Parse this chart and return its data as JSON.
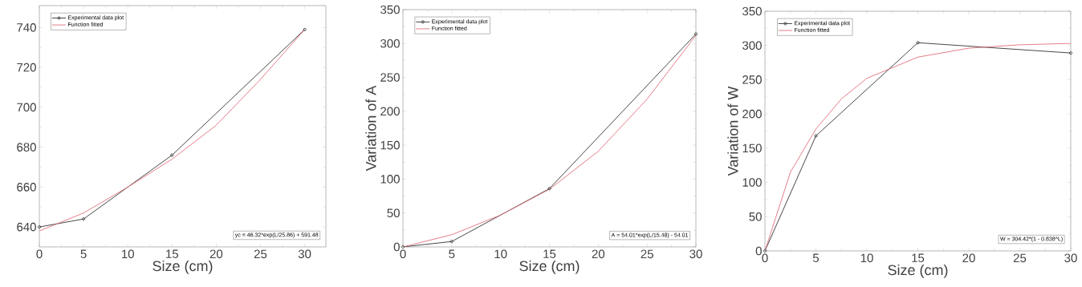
{
  "chart_data": [
    {
      "type": "line",
      "xlabel": "Size (cm)",
      "xlim": [
        0,
        32.4
      ],
      "ylim": [
        630,
        751
      ],
      "xticks": [
        0,
        5,
        10,
        15,
        20,
        25,
        30
      ],
      "yticks": [
        640,
        660,
        680,
        700,
        720,
        740
      ],
      "legend": "top left",
      "annotations": [
        "yc = 46.32*exp(L/25.86) + 591.48"
      ],
      "series": [
        {
          "name": "Experimental data plot",
          "color": "#333333",
          "marker": "circle",
          "x": [
            0,
            5,
            15,
            30
          ],
          "values": [
            640,
            644,
            676,
            739
          ]
        },
        {
          "name": "Function fitted",
          "color": "#e0707a",
          "marker": "none",
          "x": [
            0,
            5,
            10,
            15,
            20,
            25,
            30
          ],
          "values": [
            638,
            647,
            660,
            674,
            691,
            714,
            739
          ]
        }
      ]
    },
    {
      "type": "line",
      "xlabel": "Size (cm)",
      "ylabel": "Variation of A",
      "xlim": [
        0,
        30
      ],
      "ylim": [
        0,
        350
      ],
      "xticks": [
        0,
        5,
        10,
        15,
        20,
        25,
        30
      ],
      "yticks": [
        0,
        50,
        100,
        150,
        200,
        250,
        300,
        350
      ],
      "legend": "top left",
      "annotations": [
        "A = 54.01*exp(L/15.48) - 54.01"
      ],
      "series": [
        {
          "name": "Experimental data plot",
          "color": "#333333",
          "marker": "circle",
          "x": [
            0,
            5,
            15,
            30
          ],
          "values": [
            0,
            8,
            86,
            314
          ]
        },
        {
          "name": "Function fitted",
          "color": "#e0707a",
          "marker": "none",
          "x": [
            0,
            5,
            10,
            15,
            20,
            25,
            30
          ],
          "values": [
            0,
            18,
            47,
            85,
            141,
            218,
            312
          ]
        }
      ]
    },
    {
      "type": "line",
      "xlabel": "Size (cm)",
      "ylabel": "Variation of W",
      "xlim": [
        0,
        30
      ],
      "ylim": [
        0,
        350
      ],
      "xticks": [
        0,
        5,
        10,
        15,
        20,
        25,
        30
      ],
      "yticks": [
        0,
        50,
        100,
        150,
        200,
        250,
        300,
        350
      ],
      "legend": "top left",
      "annotations": [
        "W = 304.42*(1 - 0.838^L)"
      ],
      "series": [
        {
          "name": "Experimental data plot",
          "color": "#333333",
          "marker": "circle",
          "x": [
            0,
            5,
            15,
            30
          ],
          "values": [
            0,
            168,
            304,
            289
          ]
        },
        {
          "name": "Function fitted",
          "color": "#e0707a",
          "marker": "none",
          "x": [
            0,
            2.5,
            5,
            7.5,
            10,
            15,
            20,
            25,
            30
          ],
          "values": [
            0,
            115,
            178,
            222,
            252,
            283,
            296,
            301,
            303
          ]
        }
      ]
    }
  ]
}
